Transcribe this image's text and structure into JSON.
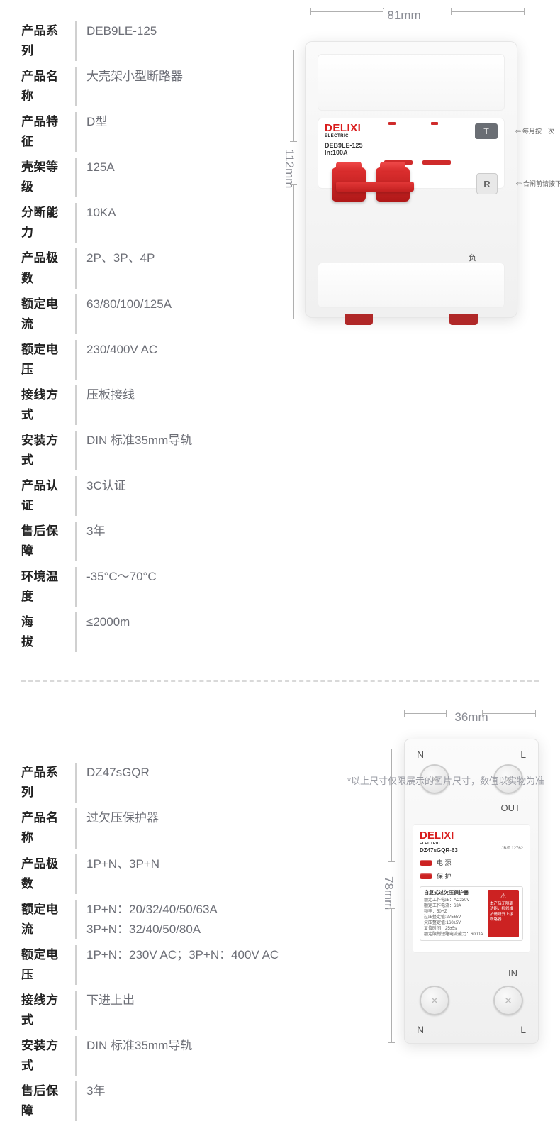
{
  "product1": {
    "specs": [
      {
        "label": "产品系列",
        "value": "DEB9LE-125"
      },
      {
        "label": "产品名称",
        "value": "大壳架小型断路器"
      },
      {
        "label": "产品特征",
        "value": "D型"
      },
      {
        "label": "壳架等级",
        "value": "125A"
      },
      {
        "label": "分断能力",
        "value": "10KA"
      },
      {
        "label": "产品极数",
        "value": "2P、3P、4P"
      },
      {
        "label": "额定电流",
        "value": "63/80/100/125A"
      },
      {
        "label": "额定电压",
        "value": "230/400V AC"
      },
      {
        "label": "接线方式",
        "value": "压板接线"
      },
      {
        "label": "安装方式",
        "value": "DIN 标准35mm导轨"
      },
      {
        "label": "产品认证",
        "value": "3C认证"
      },
      {
        "label": "售后保障",
        "value": "3年"
      },
      {
        "label": "环境温度",
        "value": "-35°C～70°C"
      },
      {
        "label": "海　　拔",
        "value": "≤2000m"
      }
    ],
    "dim_width": "81mm",
    "dim_height": "112mm",
    "brand": "DELIXI",
    "brand_sub": "ELECTRIC",
    "model": "DEB9LE-125",
    "rating": "In:100A",
    "btn_t": "T",
    "btn_r": "R",
    "t_label": "每月按一次",
    "r_label": "合闸前请按下",
    "load": "负\n载\n端",
    "colors": {
      "brand_red": "#d91c1c",
      "toggle_red": "#cf2b2b",
      "body_grey": "#f0f0f0",
      "label_grey": "#6c6e76",
      "dim_grey": "#8a8c94"
    }
  },
  "product2": {
    "specs": [
      {
        "label": "产品系列",
        "value": "DZ47sGQR"
      },
      {
        "label": "产品名称",
        "value": "过欠压保护器"
      },
      {
        "label": "产品极数",
        "value": "1P+N、3P+N"
      },
      {
        "label": "额定电流",
        "value": "1P+N：20/32/40/50/63A\n3P+N：32/40/50/80A"
      },
      {
        "label": "额定电压",
        "value": "1P+N：230V AC；3P+N：400V AC"
      },
      {
        "label": "接线方式",
        "value": "下进上出"
      },
      {
        "label": "安装方式",
        "value": "DIN 标准35mm导轨"
      },
      {
        "label": "售后保障",
        "value": "3年"
      }
    ],
    "dim_width": "36mm",
    "dim_height": "78mm",
    "brand": "DELIXI",
    "brand_sub": "ELECTRIC",
    "model": "DZ47sGQR-63",
    "jbt": "JB/T 12762",
    "led1": "电 源",
    "led2": "保 护",
    "detail_title": "自复式过欠压保护器",
    "detail_lines": "额定工作电压：AC230V\n额定工作电流：63A\n频率：50HZ\n过压整定值:275±5V\n欠压整定值:160±5V\n复位时间：25±5s\n额定限制短路电流能力：6000A",
    "warning": "本产品无隔离功能，检修维护请断开上级断路器",
    "term_N": "N",
    "term_L": "L",
    "out": "OUT",
    "in": "IN"
  },
  "footnote": "*以上尺寸仅限展示的图片尺寸，数值以实物为准"
}
